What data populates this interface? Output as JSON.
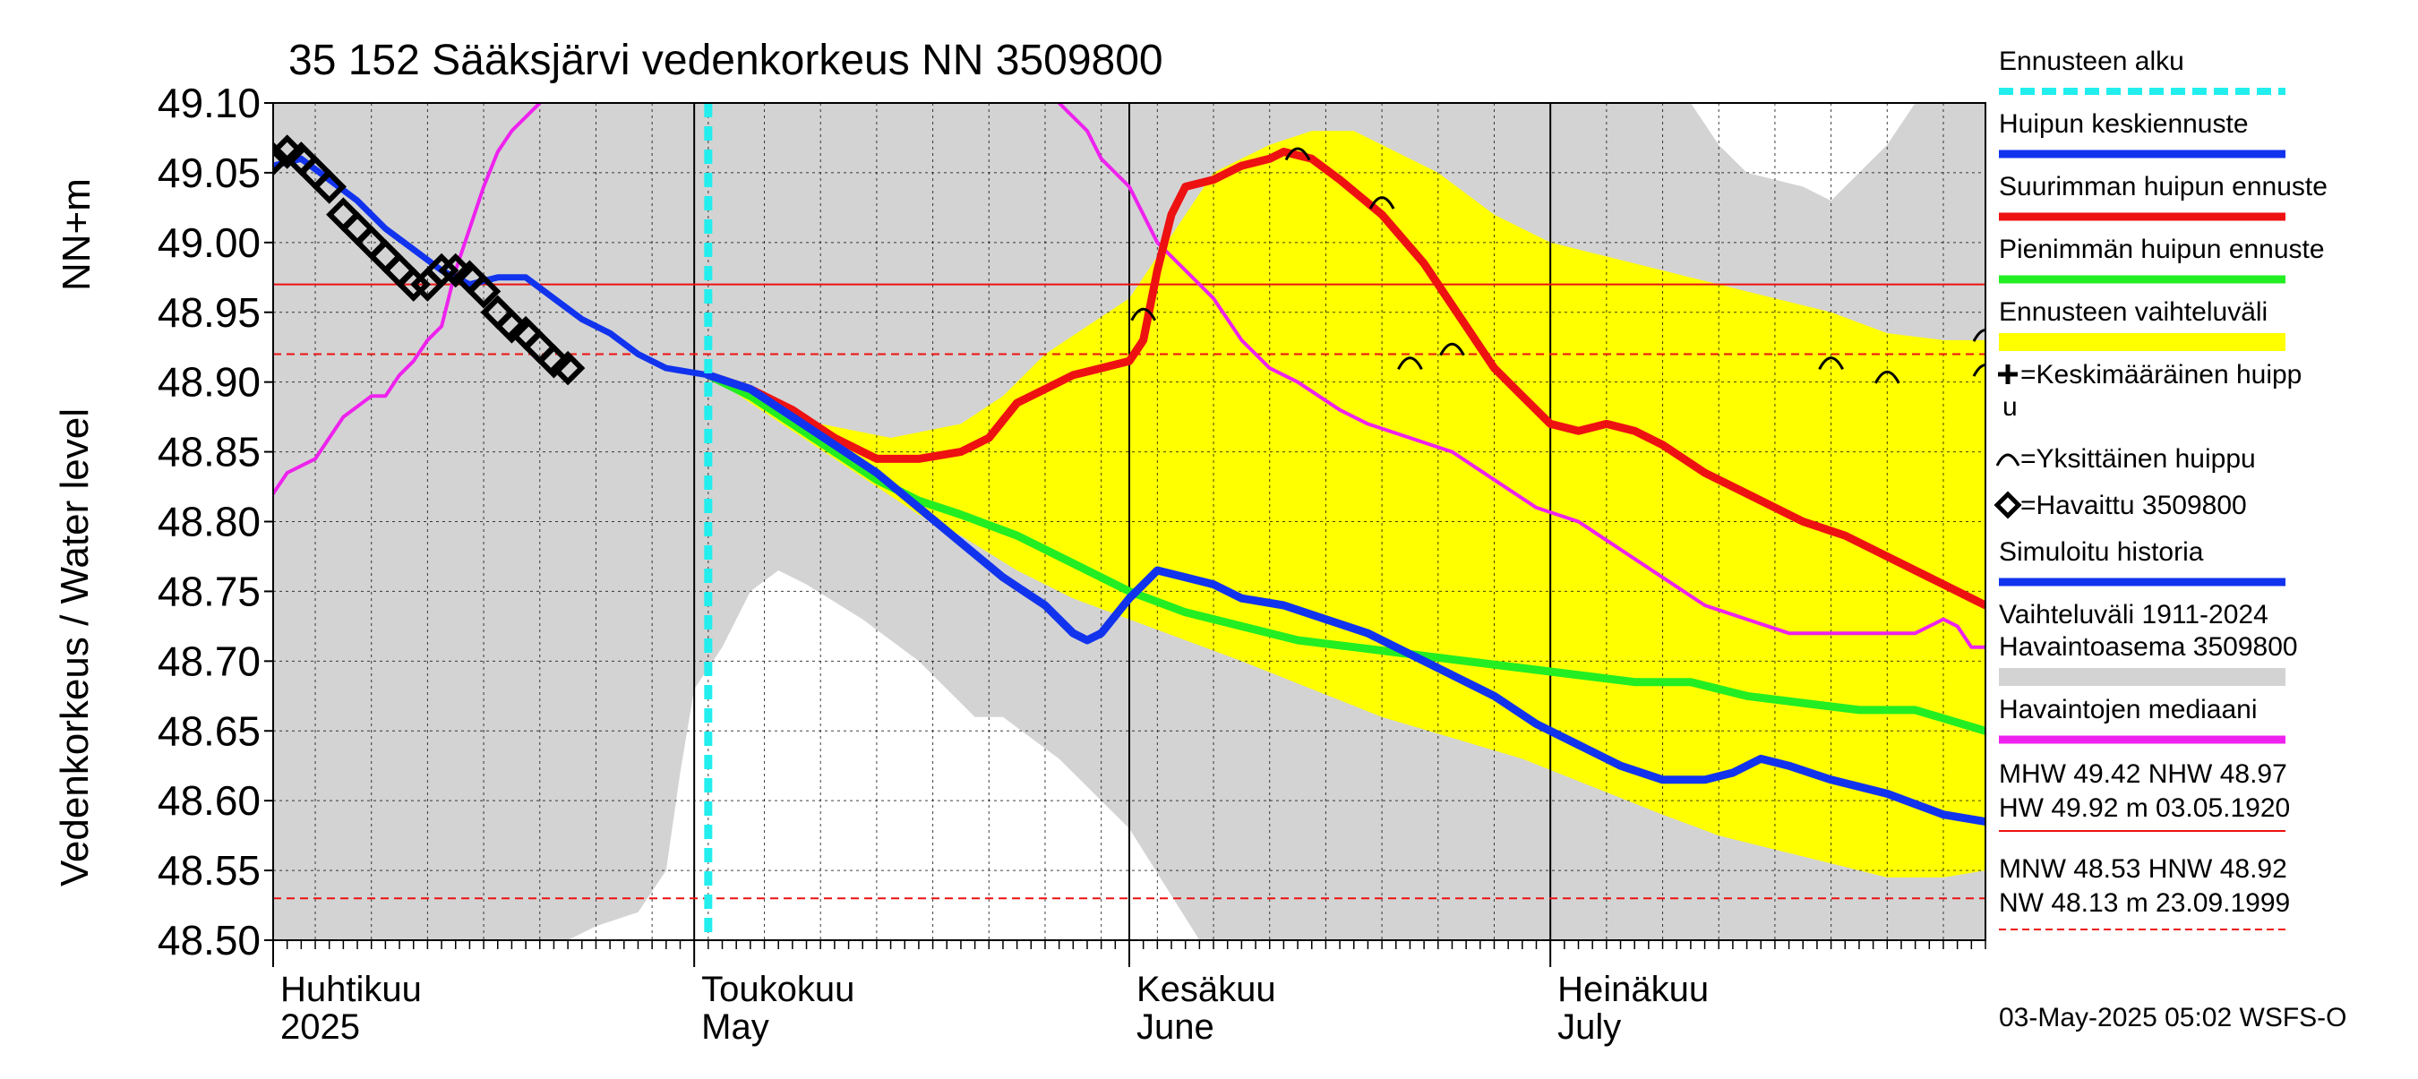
{
  "chart_data": {
    "type": "line",
    "title": "35 152 Sääksjärvi vedenkorkeus NN 3509800",
    "ylabel_units": "NN+m",
    "ylabel": "Vedenkorkeus / Water level",
    "ylim": [
      48.5,
      49.1
    ],
    "y_ticks": [
      "48.50",
      "48.55",
      "48.60",
      "48.65",
      "48.70",
      "48.75",
      "48.80",
      "48.85",
      "48.90",
      "48.95",
      "49.00",
      "49.05",
      "49.10"
    ],
    "x_range_days": [
      1,
      123
    ],
    "month_labels": [
      {
        "fi": "Huhtikuu",
        "en": "2025",
        "day": 1
      },
      {
        "fi": "Toukokuu",
        "en": "May",
        "day": 31
      },
      {
        "fi": "Kesäkuu",
        "en": "June",
        "day": 62
      },
      {
        "fi": "Heinäkuu",
        "en": "July",
        "day": 92
      }
    ],
    "forecast_start_day": 32,
    "reference_lines": {
      "NHW": 48.97,
      "HNW": 48.92,
      "MNW": 48.53
    },
    "history_band": {
      "upper": [
        [
          1,
          49.1
        ],
        [
          102,
          49.1
        ],
        [
          104,
          49.07
        ],
        [
          106,
          49.05
        ],
        [
          110,
          49.04
        ],
        [
          112,
          49.03
        ],
        [
          114,
          49.05
        ],
        [
          116,
          49.07
        ],
        [
          118,
          49.1
        ],
        [
          123,
          49.1
        ]
      ],
      "lower": [
        [
          1,
          48.5
        ],
        [
          22,
          48.5
        ],
        [
          24,
          48.51
        ],
        [
          27,
          48.52
        ],
        [
          29,
          48.55
        ],
        [
          30,
          48.62
        ],
        [
          31,
          48.68
        ],
        [
          33,
          48.71
        ],
        [
          35,
          48.75
        ],
        [
          37,
          48.765
        ],
        [
          39,
          48.755
        ],
        [
          43,
          48.73
        ],
        [
          47,
          48.7
        ],
        [
          49,
          48.68
        ],
        [
          51,
          48.66
        ],
        [
          53,
          48.66
        ],
        [
          57,
          48.63
        ],
        [
          62,
          48.58
        ],
        [
          67,
          48.5
        ],
        [
          123,
          48.5
        ]
      ]
    },
    "forecast_band": {
      "upper": [
        [
          32,
          48.905
        ],
        [
          35,
          48.89
        ],
        [
          40,
          48.87
        ],
        [
          45,
          48.86
        ],
        [
          50,
          48.87
        ],
        [
          53,
          48.89
        ],
        [
          56,
          48.92
        ],
        [
          59,
          48.94
        ],
        [
          62,
          48.96
        ],
        [
          64,
          48.99
        ],
        [
          66,
          49.02
        ],
        [
          68,
          49.05
        ],
        [
          70,
          49.06
        ],
        [
          72,
          49.07
        ],
        [
          75,
          49.08
        ],
        [
          78,
          49.08
        ],
        [
          80,
          49.07
        ],
        [
          84,
          49.05
        ],
        [
          88,
          49.02
        ],
        [
          92,
          49.0
        ],
        [
          96,
          48.99
        ],
        [
          100,
          48.98
        ],
        [
          104,
          48.97
        ],
        [
          108,
          48.96
        ],
        [
          112,
          48.95
        ],
        [
          116,
          48.935
        ],
        [
          120,
          48.93
        ],
        [
          123,
          48.93
        ]
      ],
      "lower": [
        [
          32,
          48.905
        ],
        [
          35,
          48.885
        ],
        [
          38,
          48.865
        ],
        [
          41,
          48.845
        ],
        [
          44,
          48.825
        ],
        [
          47,
          48.805
        ],
        [
          50,
          48.79
        ],
        [
          54,
          48.765
        ],
        [
          58,
          48.745
        ],
        [
          62,
          48.73
        ],
        [
          66,
          48.715
        ],
        [
          70,
          48.7
        ],
        [
          75,
          48.68
        ],
        [
          80,
          48.66
        ],
        [
          85,
          48.645
        ],
        [
          90,
          48.63
        ],
        [
          95,
          48.61
        ],
        [
          100,
          48.59
        ],
        [
          104,
          48.575
        ],
        [
          108,
          48.565
        ],
        [
          112,
          48.555
        ],
        [
          116,
          48.545
        ],
        [
          120,
          48.545
        ],
        [
          123,
          48.55
        ]
      ]
    },
    "series": [
      {
        "name": "Havaintojen mediaani",
        "color": "#ee22ee",
        "width": 4,
        "points": [
          [
            1,
            48.82
          ],
          [
            2,
            48.835
          ],
          [
            4,
            48.845
          ],
          [
            5,
            48.86
          ],
          [
            6,
            48.875
          ],
          [
            8,
            48.89
          ],
          [
            9,
            48.89
          ],
          [
            10,
            48.905
          ],
          [
            11,
            48.915
          ],
          [
            12,
            48.93
          ],
          [
            13,
            48.94
          ],
          [
            14,
            48.98
          ],
          [
            15,
            49.01
          ],
          [
            16,
            49.04
          ],
          [
            17,
            49.065
          ],
          [
            18,
            49.08
          ],
          [
            20,
            49.1
          ]
        ]
      },
      {
        "name": "Havaintojen mediaani",
        "color": "#ee22ee",
        "width": 4,
        "points": [
          [
            57,
            49.1
          ],
          [
            58,
            49.09
          ],
          [
            59,
            49.08
          ],
          [
            60,
            49.06
          ],
          [
            62,
            49.04
          ],
          [
            63,
            49.02
          ],
          [
            64,
            49.0
          ],
          [
            66,
            48.98
          ],
          [
            68,
            48.96
          ],
          [
            70,
            48.93
          ],
          [
            72,
            48.91
          ],
          [
            74,
            48.9
          ],
          [
            77,
            48.88
          ],
          [
            79,
            48.87
          ],
          [
            82,
            48.86
          ],
          [
            85,
            48.85
          ],
          [
            88,
            48.83
          ],
          [
            91,
            48.81
          ],
          [
            94,
            48.8
          ],
          [
            97,
            48.78
          ],
          [
            100,
            48.76
          ],
          [
            103,
            48.74
          ],
          [
            106,
            48.73
          ],
          [
            109,
            48.72
          ],
          [
            112,
            48.72
          ],
          [
            115,
            48.72
          ],
          [
            118,
            48.72
          ],
          [
            120,
            48.73
          ],
          [
            121,
            48.725
          ],
          [
            122,
            48.71
          ],
          [
            123,
            48.71
          ]
        ]
      },
      {
        "name": "Suurimman huipun ennuste",
        "color": "#ee1111",
        "width": 9,
        "points": [
          [
            32,
            48.905
          ],
          [
            35,
            48.895
          ],
          [
            38,
            48.88
          ],
          [
            41,
            48.86
          ],
          [
            44,
            48.845
          ],
          [
            47,
            48.845
          ],
          [
            50,
            48.85
          ],
          [
            52,
            48.86
          ],
          [
            54,
            48.885
          ],
          [
            56,
            48.895
          ],
          [
            58,
            48.905
          ],
          [
            60,
            48.91
          ],
          [
            62,
            48.915
          ],
          [
            63,
            48.93
          ],
          [
            64,
            48.98
          ],
          [
            65,
            49.02
          ],
          [
            66,
            49.04
          ],
          [
            68,
            49.045
          ],
          [
            70,
            49.055
          ],
          [
            72,
            49.06
          ],
          [
            73,
            49.065
          ],
          [
            75,
            49.06
          ],
          [
            77,
            49.045
          ],
          [
            80,
            49.02
          ],
          [
            83,
            48.985
          ],
          [
            86,
            48.94
          ],
          [
            88,
            48.91
          ],
          [
            90,
            48.89
          ],
          [
            92,
            48.87
          ],
          [
            94,
            48.865
          ],
          [
            96,
            48.87
          ],
          [
            98,
            48.865
          ],
          [
            100,
            48.855
          ],
          [
            103,
            48.835
          ],
          [
            106,
            48.82
          ],
          [
            110,
            48.8
          ],
          [
            113,
            48.79
          ],
          [
            116,
            48.775
          ],
          [
            119,
            48.76
          ],
          [
            122,
            48.745
          ],
          [
            123,
            48.74
          ]
        ]
      },
      {
        "name": "Pienimmän huipun ennuste",
        "color": "#22ee22",
        "width": 9,
        "points": [
          [
            32,
            48.905
          ],
          [
            35,
            48.89
          ],
          [
            38,
            48.87
          ],
          [
            41,
            48.85
          ],
          [
            44,
            48.83
          ],
          [
            47,
            48.815
          ],
          [
            50,
            48.805
          ],
          [
            54,
            48.79
          ],
          [
            58,
            48.77
          ],
          [
            62,
            48.75
          ],
          [
            66,
            48.735
          ],
          [
            70,
            48.725
          ],
          [
            74,
            48.715
          ],
          [
            78,
            48.71
          ],
          [
            82,
            48.705
          ],
          [
            86,
            48.7
          ],
          [
            90,
            48.695
          ],
          [
            94,
            48.69
          ],
          [
            98,
            48.685
          ],
          [
            102,
            48.685
          ],
          [
            106,
            48.675
          ],
          [
            110,
            48.67
          ],
          [
            114,
            48.665
          ],
          [
            118,
            48.665
          ],
          [
            123,
            48.65
          ]
        ]
      },
      {
        "name": "Huipun keskiennuste",
        "color": "#1133ee",
        "width": 9,
        "points": [
          [
            32,
            48.905
          ],
          [
            35,
            48.895
          ],
          [
            38,
            48.875
          ],
          [
            41,
            48.855
          ],
          [
            44,
            48.835
          ],
          [
            47,
            48.81
          ],
          [
            50,
            48.785
          ],
          [
            53,
            48.76
          ],
          [
            56,
            48.74
          ],
          [
            58,
            48.72
          ],
          [
            59,
            48.715
          ],
          [
            60,
            48.72
          ],
          [
            62,
            48.745
          ],
          [
            64,
            48.765
          ],
          [
            66,
            48.76
          ],
          [
            68,
            48.755
          ],
          [
            70,
            48.745
          ],
          [
            73,
            48.74
          ],
          [
            76,
            48.73
          ],
          [
            79,
            48.72
          ],
          [
            82,
            48.705
          ],
          [
            85,
            48.69
          ],
          [
            88,
            48.675
          ],
          [
            91,
            48.655
          ],
          [
            94,
            48.64
          ],
          [
            97,
            48.625
          ],
          [
            100,
            48.615
          ],
          [
            103,
            48.615
          ],
          [
            105,
            48.62
          ],
          [
            107,
            48.63
          ],
          [
            109,
            48.625
          ],
          [
            112,
            48.615
          ],
          [
            116,
            48.605
          ],
          [
            120,
            48.59
          ],
          [
            123,
            48.585
          ]
        ]
      },
      {
        "name": "Simuloitu historia",
        "color": "#1133ee",
        "width": 7,
        "points": [
          [
            1,
            49.055
          ],
          [
            3,
            49.06
          ],
          [
            5,
            49.045
          ],
          [
            7,
            49.03
          ],
          [
            9,
            49.01
          ],
          [
            11,
            48.995
          ],
          [
            13,
            48.98
          ],
          [
            15,
            48.97
          ],
          [
            17,
            48.975
          ],
          [
            19,
            48.975
          ],
          [
            21,
            48.96
          ],
          [
            23,
            48.945
          ],
          [
            25,
            48.935
          ],
          [
            27,
            48.92
          ],
          [
            29,
            48.91
          ],
          [
            32,
            48.905
          ]
        ]
      }
    ],
    "observed": {
      "name": "Havaittu 3509800",
      "points": [
        [
          1,
          49.06
        ],
        [
          2,
          49.065
        ],
        [
          3,
          49.06
        ],
        [
          4,
          49.05
        ],
        [
          5,
          49.04
        ],
        [
          6,
          49.02
        ],
        [
          7,
          49.01
        ],
        [
          8,
          49.0
        ],
        [
          9,
          48.99
        ],
        [
          10,
          48.98
        ],
        [
          11,
          48.97
        ],
        [
          12,
          48.97
        ],
        [
          13,
          48.98
        ],
        [
          14,
          48.98
        ],
        [
          15,
          48.975
        ],
        [
          16,
          48.965
        ],
        [
          17,
          48.95
        ],
        [
          18,
          48.94
        ],
        [
          19,
          48.935
        ],
        [
          20,
          48.925
        ],
        [
          21,
          48.915
        ],
        [
          22,
          48.91
        ]
      ]
    },
    "peak_markers": [
      [
        63,
        48.95
      ],
      [
        74,
        49.065
      ],
      [
        80,
        49.03
      ],
      [
        82,
        48.915
      ],
      [
        85,
        48.925
      ],
      [
        112,
        48.915
      ],
      [
        116,
        48.905
      ],
      [
        123,
        48.935
      ],
      [
        123,
        48.91
      ]
    ],
    "legend": [
      {
        "label": "Ennusteen alku",
        "style": "dash",
        "color": "#22eeee"
      },
      {
        "label": "Huipun keskiennuste",
        "style": "line",
        "color": "#1133ee"
      },
      {
        "label": "Suurimman huipun ennuste",
        "style": "line",
        "color": "#ee1111"
      },
      {
        "label": "Pienimmän huipun ennuste",
        "style": "line",
        "color": "#22ee22"
      },
      {
        "label": "Ennusteen vaihteluväli",
        "style": "band",
        "color": "#ffff00"
      },
      {
        "label": "=Keskimääräinen huipp",
        "label2": "u",
        "style": "plus"
      },
      {
        "label": "=Yksittäinen huippu",
        "style": "arc"
      },
      {
        "label": "=Havaittu 3509800",
        "style": "diamond"
      },
      {
        "label": "Simuloitu historia",
        "style": "line",
        "color": "#1133ee"
      },
      {
        "label": "Vaihteluväli 1911-2024",
        "label2": " Havaintoasema 3509800",
        "style": "band",
        "color": "#d3d3d3"
      },
      {
        "label": "Havaintojen mediaani",
        "style": "line",
        "color": "#ee22ee"
      }
    ],
    "stats": {
      "line1": "MHW  49.42 NHW  48.97",
      "line2": "HW  49.92 m 03.05.1920",
      "line3": "MNW  48.53 HNW  48.92",
      "line4": "NW  48.13 m 23.09.1999"
    },
    "footer": "03-May-2025 05:02 WSFS-O",
    "colors": {
      "grid": "#000000",
      "history_band": "#d3d3d3",
      "forecast_band": "#ffff00",
      "ref_line": "#ee1111",
      "forecast_start": "#22eeee"
    }
  }
}
